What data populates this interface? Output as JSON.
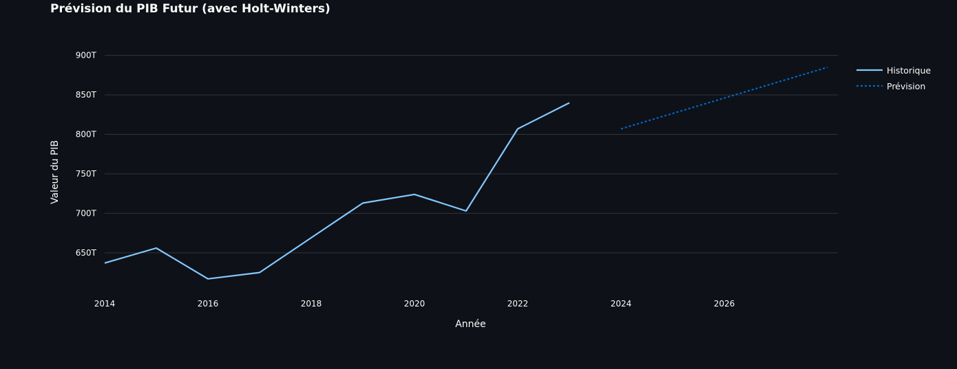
{
  "colors": {
    "background": "#0e1117",
    "grid": "#31333f",
    "text": "#fafafa",
    "historique": "#83c9ff",
    "prevision": "#0068c9"
  },
  "chart_data": {
    "type": "line",
    "title": "Prévision du PIB Futur (avec Holt-Winters)",
    "xlabel": "Année",
    "ylabel": "Valeur du PIB",
    "xlim": [
      2014,
      2028.2
    ],
    "ylim": [
      602,
      918
    ],
    "x_ticks": [
      2014,
      2016,
      2018,
      2020,
      2022,
      2024,
      2026
    ],
    "x_tick_labels": [
      "2014",
      "2016",
      "2018",
      "2020",
      "2022",
      "2024",
      "2026"
    ],
    "y_ticks": [
      650,
      700,
      750,
      800,
      850,
      900
    ],
    "y_tick_labels": [
      "650T",
      "700T",
      "750T",
      "800T",
      "850T",
      "900T"
    ],
    "grid": true,
    "legend_position": "top-right",
    "series": [
      {
        "name": "Historique",
        "style": "solid",
        "color": "#83c9ff",
        "x": [
          2014,
          2015,
          2016,
          2017,
          2018,
          2019,
          2020,
          2021,
          2022,
          2023
        ],
        "y": [
          637,
          656,
          617,
          625,
          669,
          713,
          724,
          703,
          807,
          840
        ]
      },
      {
        "name": "Prévision",
        "style": "dotted",
        "color": "#0068c9",
        "x": [
          2024,
          2025,
          2026,
          2027,
          2028
        ],
        "y": [
          807,
          826.5,
          846,
          865.5,
          885
        ]
      }
    ]
  }
}
